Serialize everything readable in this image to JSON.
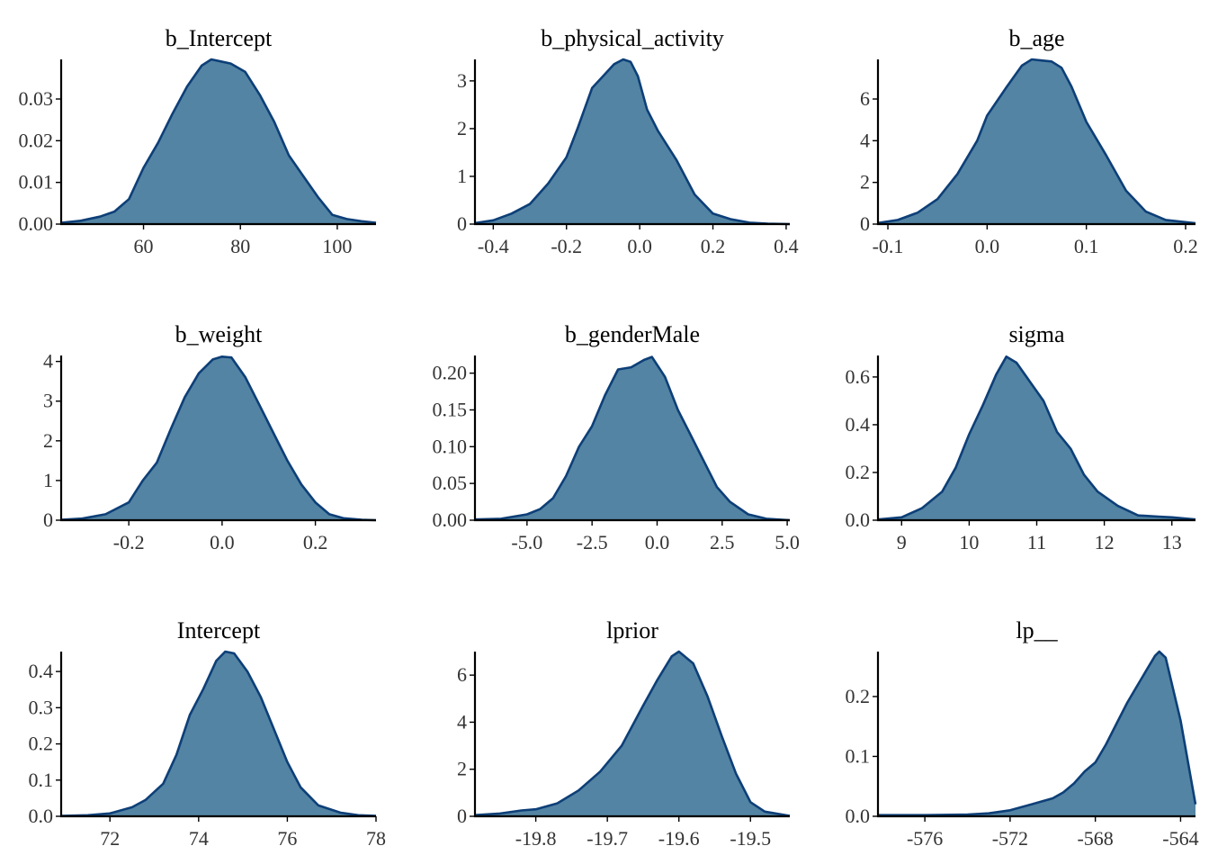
{
  "style": {
    "fill_color": "#5384a3",
    "line_color": "#0d3f78"
  },
  "chart_data": [
    {
      "type": "area",
      "title": "b_Intercept",
      "xlim": [
        43,
        108
      ],
      "ylim": [
        0,
        0.0395
      ],
      "xticks": [
        60,
        80,
        100
      ],
      "xtick_labels": [
        "60",
        "80",
        "100"
      ],
      "yticks": [
        0,
        0.01,
        0.02,
        0.03
      ],
      "ytick_labels": [
        "0.00",
        "0.01",
        "0.02",
        "0.03"
      ],
      "x": [
        43,
        47,
        51,
        54,
        57,
        60,
        63,
        66,
        69,
        72,
        74,
        76,
        78,
        81,
        84,
        87,
        90,
        93,
        96,
        99,
        102,
        105,
        108
      ],
      "y": [
        0.0003,
        0.0008,
        0.0018,
        0.003,
        0.006,
        0.0135,
        0.0195,
        0.0265,
        0.033,
        0.038,
        0.0395,
        0.039,
        0.0385,
        0.0365,
        0.031,
        0.0245,
        0.0165,
        0.0115,
        0.0065,
        0.0022,
        0.0012,
        0.0007,
        0.0003
      ]
    },
    {
      "type": "area",
      "title": "b_physical_activity",
      "xlim": [
        -0.45,
        0.41
      ],
      "ylim": [
        0,
        3.45
      ],
      "xticks": [
        -0.4,
        -0.2,
        0.0,
        0.2,
        0.4
      ],
      "xtick_labels": [
        "-0.4",
        "-0.2",
        "0.0",
        "0.2",
        "0.4"
      ],
      "yticks": [
        0,
        1,
        2,
        3
      ],
      "ytick_labels": [
        "0",
        "1",
        "2",
        "3"
      ],
      "x": [
        -0.45,
        -0.4,
        -0.35,
        -0.3,
        -0.25,
        -0.2,
        -0.17,
        -0.13,
        -0.1,
        -0.07,
        -0.045,
        -0.025,
        -0.005,
        0.02,
        0.05,
        0.1,
        0.15,
        0.2,
        0.25,
        0.3,
        0.35,
        0.41
      ],
      "y": [
        0.02,
        0.08,
        0.22,
        0.42,
        0.85,
        1.4,
        2.0,
        2.85,
        3.1,
        3.35,
        3.45,
        3.4,
        3.1,
        2.4,
        1.95,
        1.35,
        0.62,
        0.22,
        0.1,
        0.03,
        0.01,
        0.0
      ]
    },
    {
      "type": "area",
      "title": "b_age",
      "xlim": [
        -0.11,
        0.21
      ],
      "ylim": [
        0,
        7.9
      ],
      "xticks": [
        -0.1,
        0.0,
        0.1,
        0.2
      ],
      "xtick_labels": [
        "-0.1",
        "0.0",
        "0.1",
        "0.2"
      ],
      "yticks": [
        0,
        2,
        4,
        6
      ],
      "ytick_labels": [
        "0",
        "2",
        "4",
        "6"
      ],
      "x": [
        -0.11,
        -0.09,
        -0.07,
        -0.05,
        -0.03,
        -0.01,
        0.0,
        0.02,
        0.035,
        0.045,
        0.055,
        0.065,
        0.075,
        0.085,
        0.1,
        0.12,
        0.14,
        0.16,
        0.18,
        0.21
      ],
      "y": [
        0.05,
        0.2,
        0.55,
        1.2,
        2.4,
        4.0,
        5.2,
        6.6,
        7.6,
        7.9,
        7.85,
        7.8,
        7.5,
        6.6,
        4.9,
        3.3,
        1.6,
        0.6,
        0.2,
        0.04
      ]
    },
    {
      "type": "area",
      "title": "b_weight",
      "xlim": [
        -0.345,
        0.33
      ],
      "ylim": [
        0,
        4.15
      ],
      "xticks": [
        -0.2,
        0.0,
        0.2
      ],
      "xtick_labels": [
        "-0.2",
        "0.0",
        "0.2"
      ],
      "yticks": [
        0,
        1,
        2,
        3,
        4
      ],
      "ytick_labels": [
        "0",
        "1",
        "2",
        "3",
        "4"
      ],
      "x": [
        -0.345,
        -0.3,
        -0.25,
        -0.2,
        -0.17,
        -0.14,
        -0.11,
        -0.08,
        -0.05,
        -0.02,
        0.0,
        0.02,
        0.05,
        0.08,
        0.11,
        0.14,
        0.17,
        0.2,
        0.23,
        0.26,
        0.3,
        0.33
      ],
      "y": [
        0.01,
        0.04,
        0.15,
        0.45,
        1.0,
        1.45,
        2.3,
        3.1,
        3.7,
        4.05,
        4.12,
        4.1,
        3.6,
        2.9,
        2.2,
        1.5,
        0.9,
        0.45,
        0.15,
        0.05,
        0.01,
        0.0
      ]
    },
    {
      "type": "area",
      "title": "b_genderMale",
      "xlim": [
        -7.0,
        5.1
      ],
      "ylim": [
        0,
        0.224
      ],
      "xticks": [
        -5.0,
        -2.5,
        0.0,
        2.5,
        5.0
      ],
      "xtick_labels": [
        "-5.0",
        "-2.5",
        "0.0",
        "2.5",
        "5.0"
      ],
      "yticks": [
        0,
        0.05,
        0.1,
        0.15,
        0.2
      ],
      "ytick_labels": [
        "0.00",
        "0.05",
        "0.10",
        "0.15",
        "0.20"
      ],
      "x": [
        -7.0,
        -6.0,
        -5.0,
        -4.5,
        -4.0,
        -3.5,
        -3.0,
        -2.5,
        -2.0,
        -1.5,
        -1.0,
        -0.5,
        -0.2,
        0.3,
        0.8,
        1.3,
        1.8,
        2.3,
        2.8,
        3.5,
        4.2,
        5.1
      ],
      "y": [
        0.001,
        0.002,
        0.008,
        0.015,
        0.03,
        0.06,
        0.1,
        0.128,
        0.17,
        0.205,
        0.208,
        0.218,
        0.222,
        0.195,
        0.15,
        0.115,
        0.08,
        0.045,
        0.025,
        0.008,
        0.002,
        0.0
      ]
    },
    {
      "type": "area",
      "title": "sigma",
      "xlim": [
        8.65,
        13.35
      ],
      "ylim": [
        0,
        0.69
      ],
      "xticks": [
        9,
        10,
        11,
        12,
        13
      ],
      "xtick_labels": [
        "9",
        "10",
        "11",
        "12",
        "13"
      ],
      "yticks": [
        0,
        0.2,
        0.4,
        0.6
      ],
      "ytick_labels": [
        "0.0",
        "0.2",
        "0.4",
        "0.6"
      ],
      "x": [
        8.65,
        9.0,
        9.3,
        9.6,
        9.8,
        10.0,
        10.2,
        10.4,
        10.55,
        10.7,
        10.9,
        11.1,
        11.3,
        11.5,
        11.7,
        11.9,
        12.2,
        12.5,
        12.8,
        13.0,
        13.35
      ],
      "y": [
        0.003,
        0.012,
        0.05,
        0.12,
        0.22,
        0.36,
        0.48,
        0.61,
        0.685,
        0.66,
        0.58,
        0.5,
        0.37,
        0.3,
        0.19,
        0.12,
        0.06,
        0.02,
        0.015,
        0.012,
        0.003
      ]
    },
    {
      "type": "area",
      "title": "Intercept",
      "xlim": [
        70.9,
        78.0
      ],
      "ylim": [
        0,
        0.455
      ],
      "xticks": [
        72,
        74,
        76,
        78
      ],
      "xtick_labels": [
        "72",
        "74",
        "76",
        "78"
      ],
      "yticks": [
        0,
        0.1,
        0.2,
        0.3,
        0.4
      ],
      "ytick_labels": [
        "0.0",
        "0.1",
        "0.2",
        "0.3",
        "0.4"
      ],
      "x": [
        70.9,
        71.5,
        72.0,
        72.5,
        72.8,
        73.2,
        73.5,
        73.8,
        74.1,
        74.4,
        74.6,
        74.8,
        75.1,
        75.4,
        75.7,
        76.0,
        76.3,
        76.7,
        77.2,
        77.6,
        78.0
      ],
      "y": [
        0.001,
        0.003,
        0.008,
        0.025,
        0.045,
        0.09,
        0.17,
        0.28,
        0.35,
        0.43,
        0.455,
        0.45,
        0.4,
        0.33,
        0.24,
        0.15,
        0.08,
        0.03,
        0.01,
        0.003,
        0.001
      ]
    },
    {
      "type": "area",
      "title": "lprior",
      "xlim": [
        -19.885,
        -19.445
      ],
      "ylim": [
        0,
        7.0
      ],
      "xticks": [
        -19.8,
        -19.7,
        -19.6,
        -19.5
      ],
      "xtick_labels": [
        "-19.8",
        "-19.7",
        "-19.6",
        "-19.5"
      ],
      "yticks": [
        0,
        2,
        4,
        6
      ],
      "ytick_labels": [
        "0",
        "2",
        "4",
        "6"
      ],
      "x": [
        -19.885,
        -19.85,
        -19.82,
        -19.8,
        -19.77,
        -19.74,
        -19.71,
        -19.68,
        -19.65,
        -19.63,
        -19.61,
        -19.6,
        -19.58,
        -19.56,
        -19.54,
        -19.52,
        -19.5,
        -19.48,
        -19.445
      ],
      "y": [
        0.05,
        0.12,
        0.25,
        0.3,
        0.55,
        1.1,
        1.9,
        3.0,
        4.7,
        5.8,
        6.8,
        7.0,
        6.5,
        5.1,
        3.4,
        1.8,
        0.6,
        0.2,
        0.02
      ]
    },
    {
      "type": "area",
      "title": "lp__",
      "xlim": [
        -578.2,
        -563.3
      ],
      "ylim": [
        0,
        0.275
      ],
      "xticks": [
        -576,
        -572,
        -568,
        -564
      ],
      "xtick_labels": [
        "-576",
        "-572",
        "-568",
        "-564"
      ],
      "yticks": [
        0,
        0.1,
        0.2
      ],
      "ytick_labels": [
        "0.0",
        "0.1",
        "0.2"
      ],
      "x": [
        -578.2,
        -576.0,
        -574.0,
        -573.0,
        -572.0,
        -571.5,
        -571.0,
        -570.5,
        -570.0,
        -569.5,
        -569.0,
        -568.5,
        -568.0,
        -567.5,
        -567.0,
        -566.5,
        -566.0,
        -565.5,
        -565.2,
        -565.0,
        -564.7,
        -564.4,
        -564.0,
        -563.6,
        -563.3
      ],
      "y": [
        0.002,
        0.002,
        0.003,
        0.005,
        0.01,
        0.015,
        0.02,
        0.025,
        0.03,
        0.04,
        0.055,
        0.075,
        0.09,
        0.12,
        0.155,
        0.19,
        0.22,
        0.25,
        0.268,
        0.275,
        0.265,
        0.22,
        0.16,
        0.08,
        0.02
      ]
    }
  ]
}
